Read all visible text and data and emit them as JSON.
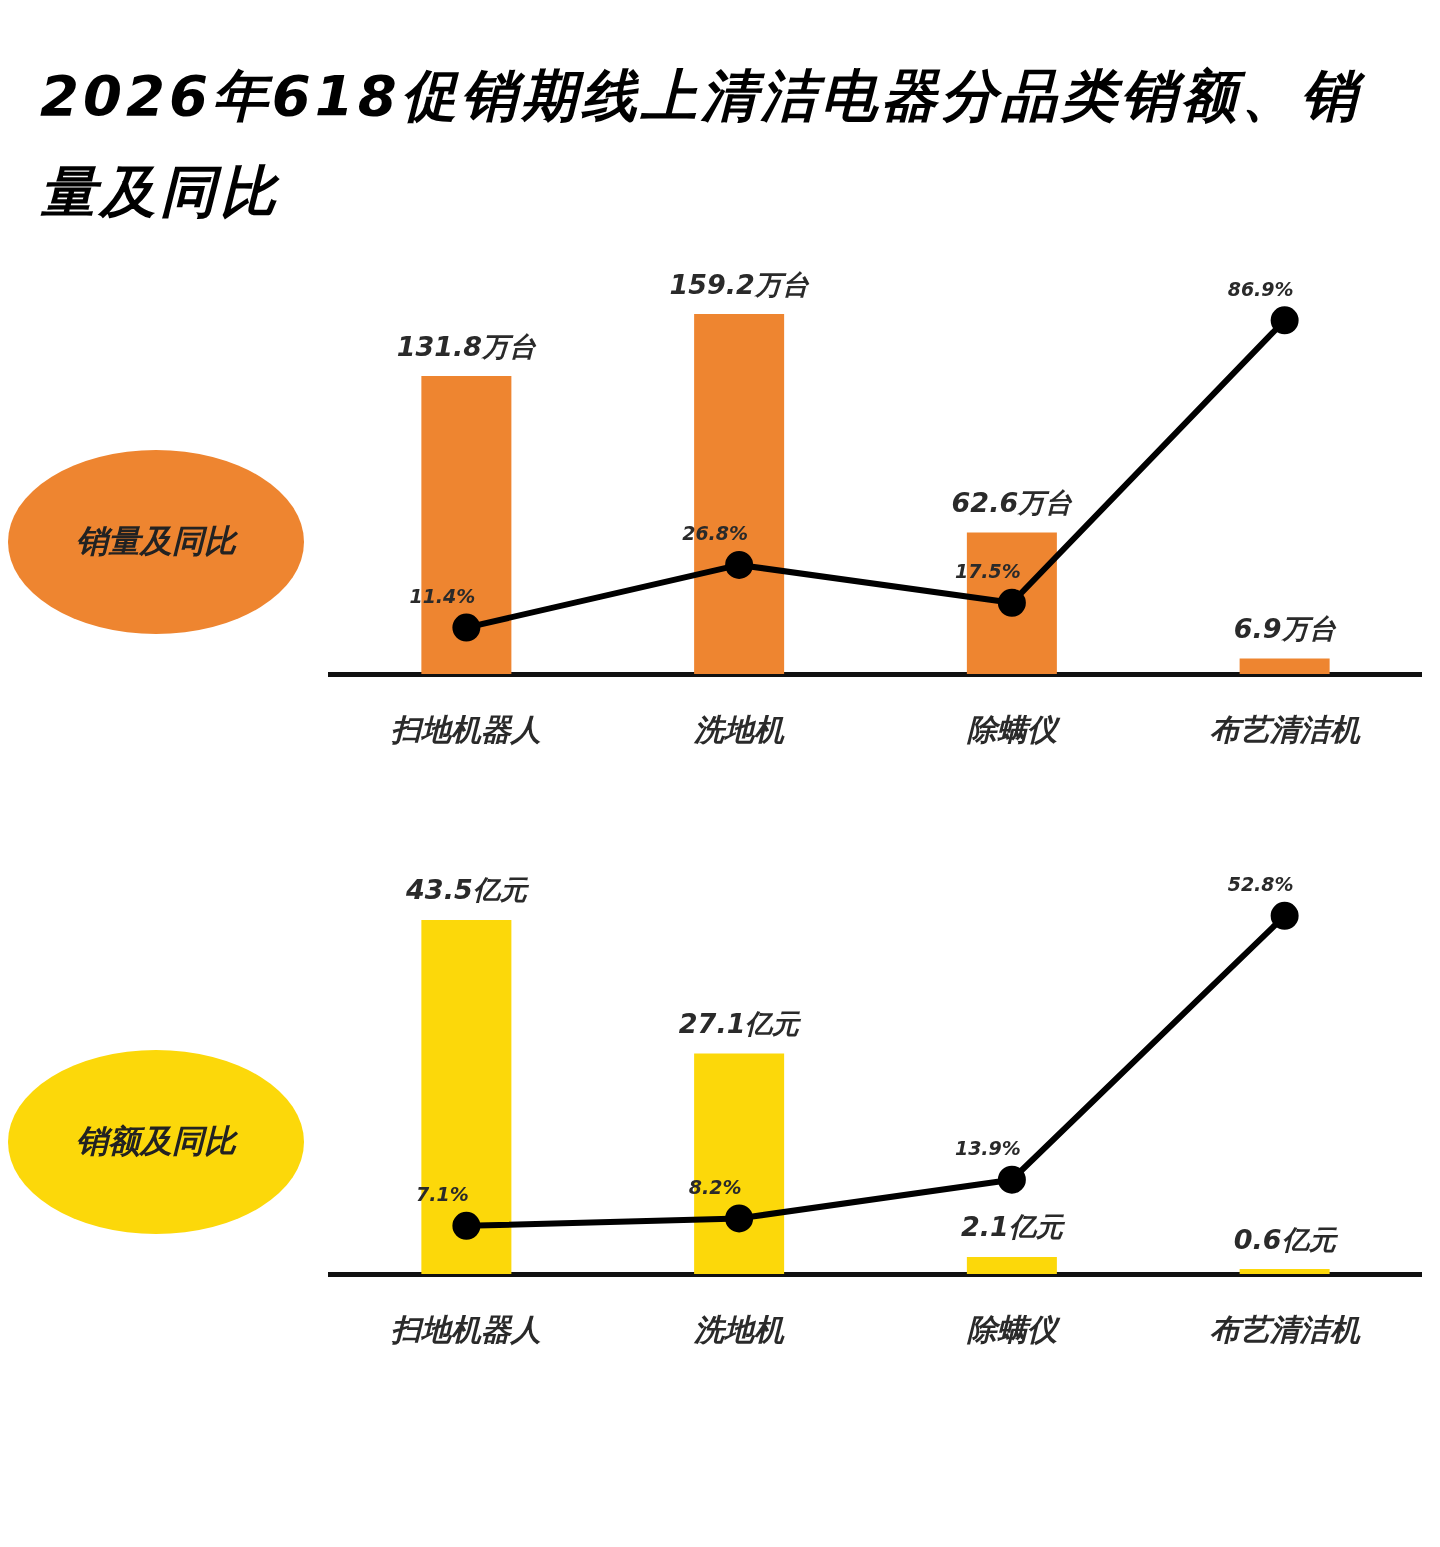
{
  "chart_data": [
    {
      "type": "bar",
      "title": "2026年618促销期线上清洁电器分品类销额、销量及同比",
      "ylabel": "销量及同比",
      "categories": [
        "扫地机器人",
        "洗地机",
        "除螨仪",
        "布艺清洁机"
      ],
      "tick_labels": "x",
      "marker": "circle",
      "series": [
        {
          "color": "#ee8530",
          "values": [
            131.8,
            159.2,
            62.6,
            6.9
          ],
          "value_labels": [
            "131.8万台",
            "159.2万台",
            "62.6万台",
            "6.9万台"
          ]
        },
        {
          "type": "line",
          "axis": "y2",
          "color": "#000000",
          "values": [
            11.4,
            26.8,
            17.5,
            86.9
          ],
          "value_labels": [
            "11.4%",
            "26.8%",
            "17.5%",
            "86.9%"
          ]
        }
      ]
    },
    {
      "type": "bar",
      "ylabel": "销额及同比",
      "categories": [
        "扫地机器人",
        "洗地机",
        "除螨仪",
        "布艺清洁机"
      ],
      "tick_labels": "x",
      "marker": "circle",
      "series": [
        {
          "color": "#fcd80a",
          "values": [
            43.5,
            27.1,
            2.1,
            0.6
          ],
          "value_labels": [
            "43.5亿元",
            "27.1亿元",
            "2.1亿元",
            "0.6亿元"
          ]
        },
        {
          "type": "line",
          "axis": "y2",
          "color": "#000000",
          "values": [
            7.1,
            8.2,
            13.9,
            52.8
          ],
          "value_labels": [
            "7.1%",
            "8.2%",
            "13.9%",
            "52.8%"
          ]
        }
      ]
    }
  ]
}
